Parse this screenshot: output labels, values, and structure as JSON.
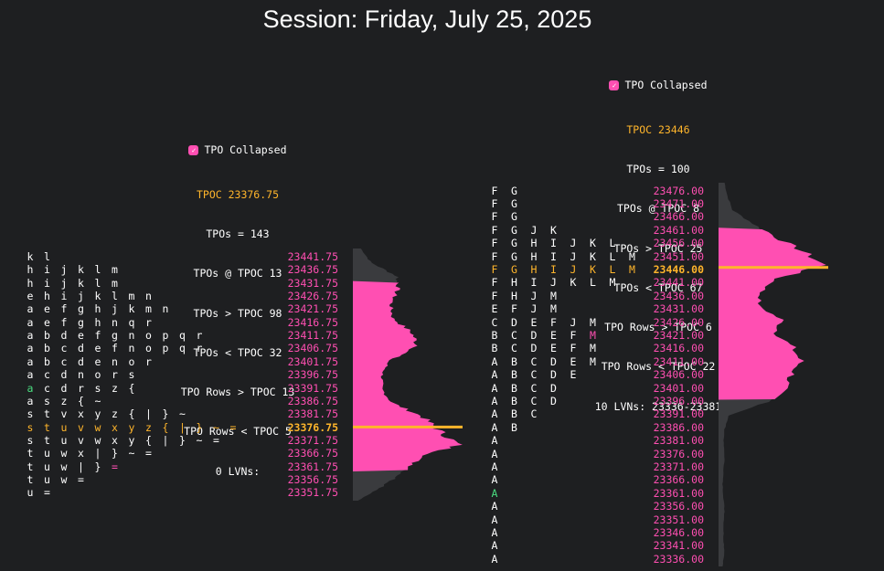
{
  "session_title": "Session: Friday, July 25, 2025",
  "colors": {
    "background": "#1e1f21",
    "price_text": "#ff4fb2",
    "poc": "#ffb52b",
    "open_marker": "#4ade80",
    "close_marker": "#ff4fb2",
    "profile_fill": "#ff4fb2",
    "profile_gray": "#3a3b3e",
    "checkbox": "#ff4fb2"
  },
  "left_profile": {
    "toggle_label": "TPO Collapsed",
    "toggle_checked": true,
    "stats": {
      "tpoc": "TPOC 23376.75",
      "tpos": "TPOs = 143",
      "tpos_at_tpoc": "TPOs @ TPOC 13",
      "tpos_above": "TPOs > TPOC 98",
      "tpos_below": "TPOs < TPOC 32",
      "rows_above": "TPO Rows > TPOC 13",
      "rows_below": "TPO Rows < TPOC 5",
      "lvns": "0 LVNs:"
    },
    "poc_price": "23376.75",
    "rows": [
      {
        "price": "23441.75",
        "letters": [
          "k",
          "l"
        ]
      },
      {
        "price": "23436.75",
        "letters": [
          "h",
          "i",
          "j",
          "k",
          "l",
          "m"
        ]
      },
      {
        "price": "23431.75",
        "letters": [
          "h",
          "i",
          "j",
          "k",
          "l",
          "m"
        ]
      },
      {
        "price": "23426.75",
        "letters": [
          "e",
          "h",
          "i",
          "j",
          "k",
          "l",
          "m",
          "n"
        ]
      },
      {
        "price": "23421.75",
        "letters": [
          "a",
          "e",
          "f",
          "g",
          "h",
          "j",
          "k",
          "m",
          "n"
        ]
      },
      {
        "price": "23416.75",
        "letters": [
          "a",
          "e",
          "f",
          "g",
          "h",
          "n",
          "q",
          "r"
        ]
      },
      {
        "price": "23411.75",
        "letters": [
          "a",
          "b",
          "d",
          "e",
          "f",
          "g",
          "n",
          "o",
          "p",
          "q",
          "r"
        ]
      },
      {
        "price": "23406.75",
        "letters": [
          "a",
          "b",
          "c",
          "d",
          "e",
          "f",
          "n",
          "o",
          "p",
          "q",
          "r"
        ]
      },
      {
        "price": "23401.75",
        "letters": [
          "a",
          "b",
          "c",
          "d",
          "e",
          "n",
          "o",
          "r"
        ]
      },
      {
        "price": "23396.75",
        "letters": [
          "a",
          "c",
          "d",
          "n",
          "o",
          "r",
          "s"
        ]
      },
      {
        "price": "23391.75",
        "letters": [
          "a",
          "c",
          "d",
          "r",
          "s",
          "z",
          "{"
        ]
      },
      {
        "price": "23386.75",
        "letters": [
          "a",
          "s",
          "z",
          "{",
          "~"
        ]
      },
      {
        "price": "23381.75",
        "letters": [
          "s",
          "t",
          "v",
          "x",
          "y",
          "z",
          "{",
          "|",
          "}",
          "~"
        ]
      },
      {
        "price": "23376.75",
        "letters": [
          "s",
          "t",
          "u",
          "v",
          "w",
          "x",
          "y",
          "z",
          "{",
          "|",
          "}",
          "~",
          "="
        ]
      },
      {
        "price": "23371.75",
        "letters": [
          "s",
          "t",
          "u",
          "v",
          "w",
          "x",
          "y",
          "{",
          "|",
          "}",
          "~",
          "="
        ]
      },
      {
        "price": "23366.75",
        "letters": [
          "t",
          "u",
          "w",
          "x",
          "|",
          "}",
          "~",
          "="
        ]
      },
      {
        "price": "23361.75",
        "letters": [
          "t",
          "u",
          "w",
          "|",
          "}",
          "="
        ]
      },
      {
        "price": "23356.75",
        "letters": [
          "t",
          "u",
          "w",
          "="
        ]
      },
      {
        "price": "23351.75",
        "letters": [
          "u",
          "="
        ]
      }
    ],
    "open_marker_row": "23391.75",
    "close_marker_row": "23361.75"
  },
  "right_profile": {
    "toggle_label": "TPO Collapsed",
    "toggle_checked": true,
    "stats": {
      "tpoc": "TPOC 23446",
      "tpos": "TPOs = 100",
      "tpos_at_tpoc": "TPOs @ TPOC 8",
      "tpos_above": "TPOs > TPOC 25",
      "tpos_below": "TPOs < TPOC 67",
      "rows_above": "TPO Rows > TPOC 6",
      "rows_below": "TPO Rows < TPOC 22",
      "lvns": "10 LVNs: 23336-23381"
    },
    "poc_price": "23446.00",
    "rows": [
      {
        "price": "23476.00",
        "letters": [
          "F",
          "G"
        ]
      },
      {
        "price": "23471.00",
        "letters": [
          "F",
          "G"
        ]
      },
      {
        "price": "23466.00",
        "letters": [
          "F",
          "G"
        ]
      },
      {
        "price": "23461.00",
        "letters": [
          "F",
          "G",
          "J",
          "K"
        ]
      },
      {
        "price": "23456.00",
        "letters": [
          "F",
          "G",
          "H",
          "I",
          "J",
          "K",
          "L"
        ]
      },
      {
        "price": "23451.00",
        "letters": [
          "F",
          "G",
          "H",
          "I",
          "J",
          "K",
          "L",
          "M"
        ]
      },
      {
        "price": "23446.00",
        "letters": [
          "F",
          "G",
          "H",
          "I",
          "J",
          "K",
          "L",
          "M"
        ]
      },
      {
        "price": "23441.00",
        "letters": [
          "F",
          "H",
          "I",
          "J",
          "K",
          "L",
          "M"
        ]
      },
      {
        "price": "23436.00",
        "letters": [
          "F",
          "H",
          "J",
          "M"
        ]
      },
      {
        "price": "23431.00",
        "letters": [
          "E",
          "F",
          "J",
          "M"
        ]
      },
      {
        "price": "23426.00",
        "letters": [
          "C",
          "D",
          "E",
          "F",
          "J",
          "M"
        ]
      },
      {
        "price": "23421.00",
        "letters": [
          "B",
          "C",
          "D",
          "E",
          "F",
          "M"
        ]
      },
      {
        "price": "23416.00",
        "letters": [
          "B",
          "C",
          "D",
          "E",
          "F",
          "M"
        ]
      },
      {
        "price": "23411.00",
        "letters": [
          "A",
          "B",
          "C",
          "D",
          "E",
          "M"
        ]
      },
      {
        "price": "23406.00",
        "letters": [
          "A",
          "B",
          "C",
          "D",
          "E"
        ]
      },
      {
        "price": "23401.00",
        "letters": [
          "A",
          "B",
          "C",
          "D"
        ]
      },
      {
        "price": "23396.00",
        "letters": [
          "A",
          "B",
          "C",
          "D"
        ]
      },
      {
        "price": "23391.00",
        "letters": [
          "A",
          "B",
          "C"
        ]
      },
      {
        "price": "23386.00",
        "letters": [
          "A",
          "B"
        ]
      },
      {
        "price": "23381.00",
        "letters": [
          "A"
        ]
      },
      {
        "price": "23376.00",
        "letters": [
          "A"
        ]
      },
      {
        "price": "23371.00",
        "letters": [
          "A"
        ]
      },
      {
        "price": "23366.00",
        "letters": [
          "A"
        ]
      },
      {
        "price": "23361.00",
        "letters": [
          "A"
        ]
      },
      {
        "price": "23356.00",
        "letters": [
          "A"
        ]
      },
      {
        "price": "23351.00",
        "letters": [
          "A"
        ]
      },
      {
        "price": "23346.00",
        "letters": [
          "A"
        ]
      },
      {
        "price": "23341.00",
        "letters": [
          "A"
        ]
      },
      {
        "price": "23336.00",
        "letters": [
          "A"
        ]
      }
    ],
    "open_marker_row": "23361.00",
    "close_marker_row": "23421.00"
  },
  "chart_data": [
    {
      "type": "bar",
      "orientation": "horizontal",
      "description_source": "left volume profile (relative volume per price level, 0-1 of profile max)",
      "levels_from": 23444,
      "levels_to": 23349,
      "pink_top": 23431.75,
      "pink_bottom": 23360,
      "poc": 23376.75,
      "shape": [
        0.08,
        0.18,
        0.45,
        0.42,
        0.36,
        0.38,
        0.56,
        0.62,
        0.34,
        0.28,
        0.27,
        0.37,
        0.66,
        0.82,
        1.0,
        0.62,
        0.5,
        0.3,
        0.05
      ]
    },
    {
      "type": "bar",
      "orientation": "horizontal",
      "description_source": "right volume profile (relative volume per price level, 0-1 of profile max)",
      "levels_from": 23478,
      "levels_to": 23333,
      "pink_top": 23461,
      "pink_bottom": 23396,
      "poc": 23446,
      "shape": [
        0.06,
        0.09,
        0.14,
        0.35,
        0.55,
        0.8,
        1.0,
        0.55,
        0.4,
        0.38,
        0.6,
        0.55,
        0.7,
        0.78,
        0.7,
        0.62,
        0.5,
        0.1,
        0.06,
        0.05,
        0.06,
        0.05,
        0.04,
        0.05,
        0.06,
        0.05,
        0.05,
        0.06,
        0.04
      ]
    }
  ]
}
